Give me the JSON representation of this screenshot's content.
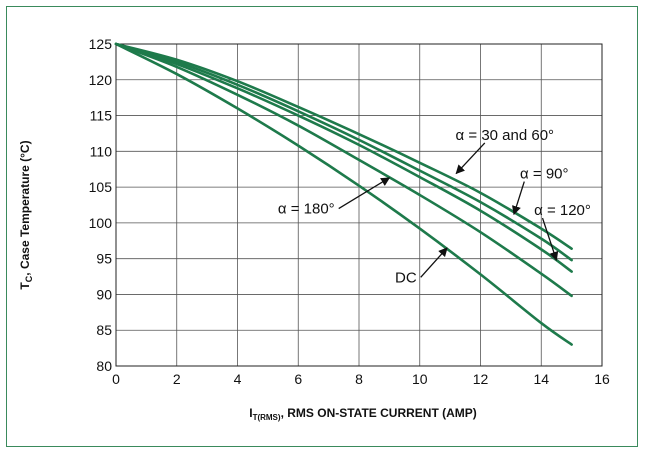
{
  "chart_data": {
    "type": "line",
    "xlabel": {
      "main": "I",
      "sub": "T(RMS)",
      "rest": ", RMS ON-STATE CURRENT (AMP)"
    },
    "ylabel": {
      "main": "T",
      "sub": "C",
      "rest": ", Case Temperature (°C)"
    },
    "xlim": [
      0,
      16
    ],
    "ylim": [
      80,
      125
    ],
    "xticks": [
      "0",
      "2",
      "4",
      "6",
      "8",
      "10",
      "12",
      "14",
      "16"
    ],
    "yticks": [
      "80",
      "85",
      "90",
      "95",
      "100",
      "105",
      "110",
      "115",
      "120",
      "125"
    ],
    "grid": true,
    "line_color": "#1e7a4b",
    "series": [
      {
        "name": "α = 30 and 60°",
        "x": [
          0,
          2,
          4,
          6,
          8,
          10,
          12,
          14,
          15
        ],
        "y": [
          125,
          122.8,
          119.8,
          116.2,
          112.4,
          108.4,
          104.2,
          99.2,
          96.4
        ]
      },
      {
        "name": "α = 90°",
        "x": [
          0,
          2,
          4,
          6,
          8,
          10,
          12,
          14,
          15
        ],
        "y": [
          125,
          122.5,
          119.3,
          115.6,
          111.6,
          107.3,
          102.9,
          97.8,
          94.8
        ]
      },
      {
        "name": "α = 120°",
        "x": [
          0,
          2,
          4,
          6,
          8,
          10,
          12,
          14,
          15
        ],
        "y": [
          125,
          122.2,
          118.8,
          115.0,
          110.9,
          106.4,
          101.7,
          96.3,
          93.2
        ]
      },
      {
        "name": "α = 180°",
        "x": [
          0,
          2,
          4,
          6,
          8,
          10,
          12,
          14,
          15
        ],
        "y": [
          125,
          121.8,
          117.9,
          113.6,
          108.8,
          103.9,
          98.7,
          92.9,
          89.8
        ]
      },
      {
        "name": "DC",
        "x": [
          0,
          2,
          4,
          6,
          8,
          10,
          12,
          14,
          15
        ],
        "y": [
          125,
          120.8,
          116.0,
          110.8,
          105.2,
          99.2,
          92.8,
          86.0,
          83.0
        ]
      }
    ],
    "annotations": [
      {
        "series": 0,
        "text": "α = 30 and 60°",
        "point": [
          11.2,
          106.9
        ],
        "text_at": [
          12.8,
          111.6
        ],
        "anchor": "middle"
      },
      {
        "series": 1,
        "text": "α = 90°",
        "point": [
          13.1,
          101.2
        ],
        "text_at": [
          14.1,
          106.2
        ],
        "anchor": "middle"
      },
      {
        "series": 2,
        "text": "α = 120°",
        "point": [
          14.5,
          94.8
        ],
        "text_at": [
          14.7,
          101.1
        ],
        "anchor": "middle"
      },
      {
        "series": 3,
        "text": "α = 180°",
        "point": [
          9.0,
          106.3
        ],
        "text_at": [
          7.2,
          101.3
        ],
        "anchor": "end"
      },
      {
        "series": 4,
        "text": "DC",
        "point": [
          10.9,
          96.5
        ],
        "text_at": [
          9.9,
          91.7
        ],
        "anchor": "end"
      }
    ]
  }
}
